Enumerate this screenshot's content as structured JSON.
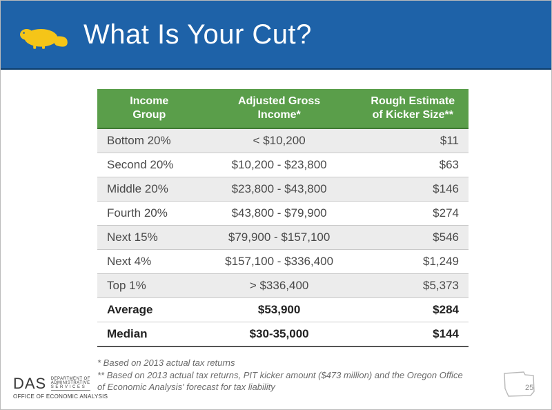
{
  "header": {
    "title": "What Is Your Cut?",
    "bg_color": "#1e62a8",
    "icon_color": "#f5c518"
  },
  "table": {
    "header_bg": "#5a9e4a",
    "alt_row_bg": "#ececec",
    "columns": [
      "Income Group",
      "Adjusted Gross Income*",
      "Rough Estimate of Kicker Size**"
    ],
    "rows": [
      {
        "group": "Bottom 20%",
        "agi": "< $10,200",
        "kicker": "$11",
        "alt": true
      },
      {
        "group": "Second 20%",
        "agi": "$10,200 - $23,800",
        "kicker": "$63",
        "alt": false
      },
      {
        "group": "Middle 20%",
        "agi": "$23,800 - $43,800",
        "kicker": "$146",
        "alt": true
      },
      {
        "group": "Fourth 20%",
        "agi": "$43,800 - $79,900",
        "kicker": "$274",
        "alt": false
      },
      {
        "group": "Next 15%",
        "agi": "$79,900 - $157,100",
        "kicker": "$546",
        "alt": true
      },
      {
        "group": "Next 4%",
        "agi": "$157,100 - $336,400",
        "kicker": "$1,249",
        "alt": false
      },
      {
        "group": "Top 1%",
        "agi": "> $336,400",
        "kicker": "$5,373",
        "alt": true
      }
    ],
    "summary": [
      {
        "group": "Average",
        "agi": "$53,900",
        "kicker": "$284"
      },
      {
        "group": "Median",
        "agi": "$30-35,000",
        "kicker": "$144"
      }
    ]
  },
  "footnotes": {
    "line1": "* Based on 2013 actual tax returns",
    "line2": "** Based on 2013 actual tax returns, PIT kicker amount ($473 million) and the Oregon Office of Economic Analysis' forecast for tax liability"
  },
  "footer": {
    "das": "DAS",
    "das_dept": "DEPARTMENT OF ADMINISTRATIVE SERVICES",
    "das_office": "OFFICE OF ECONOMIC ANALYSIS",
    "page_number": "25",
    "state_outline_color": "#b9b9b9"
  }
}
